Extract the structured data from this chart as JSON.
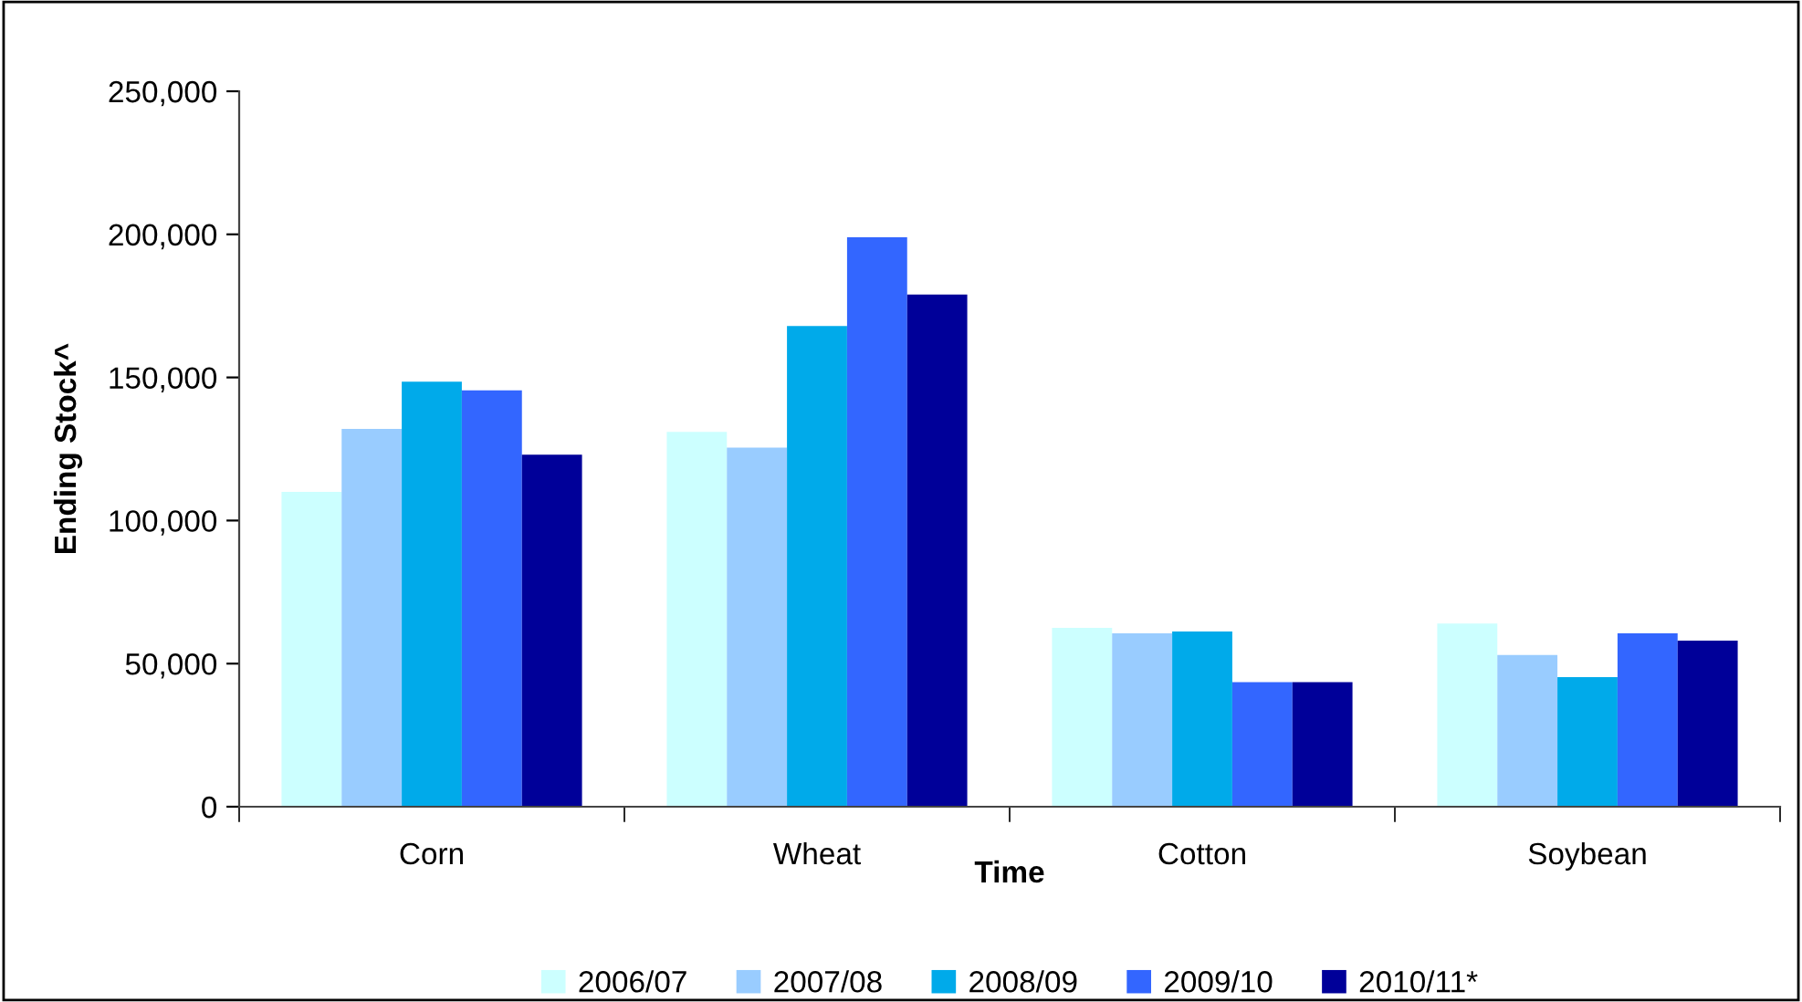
{
  "chart_data": {
    "type": "bar",
    "xlabel": "Time",
    "ylabel": "Ending Stock^",
    "categories": [
      "Corn",
      "Wheat",
      "Cotton",
      "Soybean"
    ],
    "series": [
      {
        "name": "2006/07",
        "color": "#ccffff",
        "values": [
          110000,
          131000,
          62500,
          64000
        ]
      },
      {
        "name": "2007/08",
        "color": "#99ccff",
        "values": [
          132000,
          125500,
          60600,
          53000
        ]
      },
      {
        "name": "2008/09",
        "color": "#00aaea",
        "values": [
          148500,
          168000,
          61200,
          45300
        ]
      },
      {
        "name": "2009/10",
        "color": "#3366ff",
        "values": [
          145500,
          199000,
          43500,
          60600
        ]
      },
      {
        "name": "2010/11*",
        "color": "#000099",
        "values": [
          123000,
          179000,
          43500,
          58000
        ]
      }
    ],
    "ylim": [
      0,
      250000
    ],
    "yticks": [
      {
        "value": 0,
        "label": "0"
      },
      {
        "value": 50000,
        "label": "50,000"
      },
      {
        "value": 100000,
        "label": "100,000"
      },
      {
        "value": 150000,
        "label": "150,000"
      },
      {
        "value": 200000,
        "label": "200,000"
      },
      {
        "value": 250000,
        "label": "250,000"
      }
    ],
    "grid": false,
    "legend": "bottom"
  }
}
